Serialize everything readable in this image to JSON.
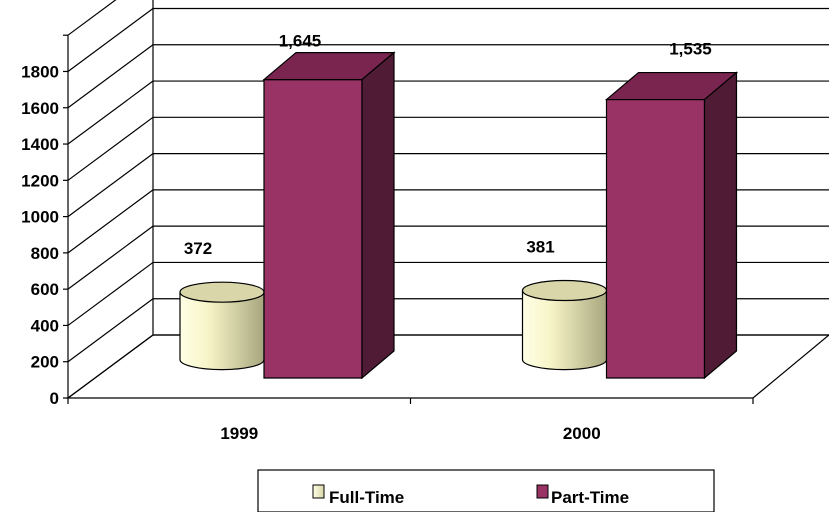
{
  "chart_data": {
    "type": "bar",
    "title": "",
    "xlabel": "",
    "ylabel": "",
    "categories": [
      "1999",
      "2000"
    ],
    "series": [
      {
        "name": "Full-Time",
        "values": [
          372,
          381
        ],
        "value_labels": [
          "372",
          "381"
        ],
        "color": "#F6F4C6",
        "shape": "cylinder"
      },
      {
        "name": "Part-Time",
        "values": [
          1645,
          1535
        ],
        "value_labels": [
          "1,645",
          "1,535"
        ],
        "color": "#993366",
        "shape": "box"
      }
    ],
    "yticks": [
      "0",
      "200",
      "400",
      "600",
      "800",
      "1000",
      "1200",
      "1400",
      "1600",
      "1800"
    ],
    "ylim": [
      0,
      1800
    ],
    "grid": true,
    "legend": "bottom",
    "style": "3d"
  }
}
